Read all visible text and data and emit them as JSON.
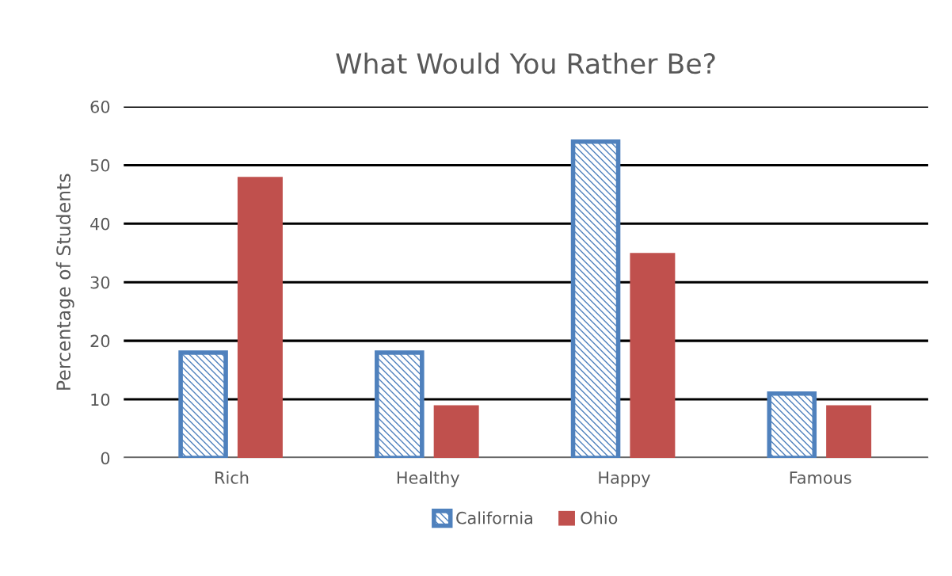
{
  "chart_data": {
    "type": "bar",
    "title": "What Would You Rather Be?",
    "ylabel": "Percentage of Students",
    "categories": [
      "Rich",
      "Healthy",
      "Happy",
      "Famous"
    ],
    "series": [
      {
        "name": "California",
        "color": "#4f81bd",
        "values": [
          18,
          18,
          54,
          11
        ]
      },
      {
        "name": "Ohio",
        "color": "#c0504d",
        "values": [
          48,
          9,
          35,
          9
        ]
      }
    ],
    "ylim": [
      0,
      60
    ],
    "yticks": [
      0,
      10,
      20,
      30,
      40,
      50,
      60
    ],
    "grid": "y",
    "legend": "bottom"
  }
}
